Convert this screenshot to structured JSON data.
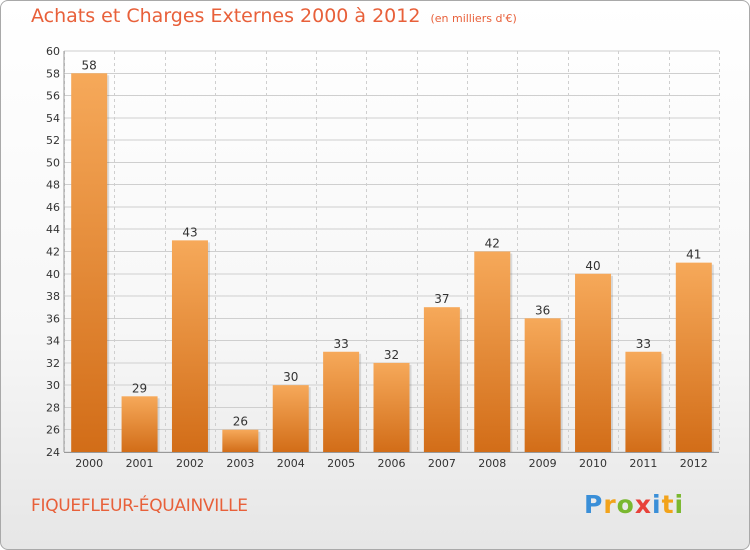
{
  "title": "Achats et Charges Externes 2000 à 2012",
  "subtitle": "(en milliers d'€)",
  "commune": "FIQUEFLEUR-ÉQUAINVILLE",
  "logo": {
    "text": "Proxiti",
    "letters": [
      {
        "ch": "P",
        "color": "#3a8fd8"
      },
      {
        "ch": "r",
        "color": "#f2a31b"
      },
      {
        "ch": "o",
        "color": "#7ab82f"
      },
      {
        "ch": "x",
        "color": "#e8423a"
      },
      {
        "ch": "i",
        "color": "#3a8fd8"
      },
      {
        "ch": "t",
        "color": "#f2a31b"
      },
      {
        "ch": "i",
        "color": "#7ab82f"
      }
    ]
  },
  "colors": {
    "accent": "#e8603a",
    "bar_light": "#f6a95a",
    "bar_dark": "#d26d18",
    "grid": "#cfcfcf"
  },
  "chart_data": {
    "type": "bar",
    "title": "Achats et Charges Externes 2000 à 2012",
    "subtitle": "(en milliers d'€)",
    "categories": [
      "2000",
      "2001",
      "2002",
      "2003",
      "2004",
      "2005",
      "2006",
      "2007",
      "2008",
      "2009",
      "2010",
      "2011",
      "2012"
    ],
    "values": [
      58,
      29,
      43,
      26,
      30,
      33,
      32,
      37,
      42,
      36,
      40,
      33,
      41
    ],
    "ylim": [
      24,
      60
    ],
    "yticks": [
      24,
      26,
      28,
      30,
      32,
      34,
      36,
      38,
      40,
      42,
      44,
      46,
      48,
      50,
      52,
      54,
      56,
      58,
      60
    ],
    "grid": true,
    "data_labels": true
  }
}
